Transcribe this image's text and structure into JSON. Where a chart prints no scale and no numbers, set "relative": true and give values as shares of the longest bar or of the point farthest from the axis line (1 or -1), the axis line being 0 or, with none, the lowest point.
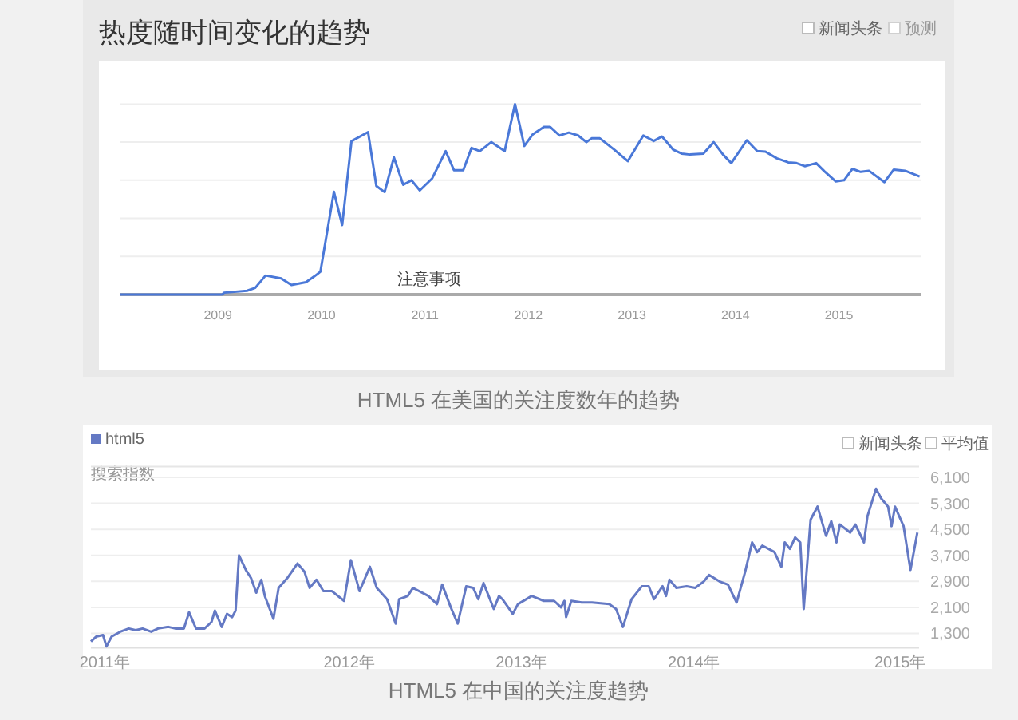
{
  "chart_data": [
    {
      "type": "line",
      "title": "热度随时间变化的趋势",
      "relative": true,
      "grid": "y",
      "legend": false,
      "color": "#4a78d8",
      "x": [
        2008.05,
        2009.04,
        2009.06,
        2009.28,
        2009.36,
        2009.46,
        2009.61,
        2009.71,
        2009.85,
        2009.93,
        2009.99,
        2010.12,
        2010.2,
        2010.29,
        2010.45,
        2010.53,
        2010.61,
        2010.7,
        2010.79,
        2010.87,
        2010.95,
        2011.07,
        2011.2,
        2011.28,
        2011.37,
        2011.45,
        2011.53,
        2011.64,
        2011.77,
        2011.87,
        2011.96,
        2012.04,
        2012.15,
        2012.21,
        2012.3,
        2012.39,
        2012.48,
        2012.56,
        2012.61,
        2012.69,
        2012.83,
        2012.96,
        2013.11,
        2013.21,
        2013.29,
        2013.4,
        2013.48,
        2013.56,
        2013.69,
        2013.79,
        2013.88,
        2013.96,
        2014.11,
        2014.21,
        2014.29,
        2014.4,
        2014.51,
        2014.59,
        2014.67,
        2014.78,
        2014.86,
        2014.97,
        2015.05,
        2015.13,
        2015.21,
        2015.29,
        2015.44,
        2015.53,
        2015.64,
        2015.78
      ],
      "values": [
        0,
        0,
        0.01,
        0.02,
        0.035,
        0.1,
        0.085,
        0.05,
        0.065,
        0.095,
        0.12,
        0.54,
        0.365,
        0.805,
        0.853,
        0.57,
        0.538,
        0.72,
        0.576,
        0.6,
        0.547,
        0.61,
        0.753,
        0.653,
        0.653,
        0.77,
        0.753,
        0.8,
        0.753,
        1.0,
        0.78,
        0.84,
        0.88,
        0.88,
        0.835,
        0.85,
        0.835,
        0.8,
        0.82,
        0.82,
        0.76,
        0.7,
        0.835,
        0.806,
        0.83,
        0.76,
        0.74,
        0.735,
        0.74,
        0.8,
        0.735,
        0.69,
        0.81,
        0.753,
        0.75,
        0.715,
        0.694,
        0.69,
        0.674,
        0.69,
        0.647,
        0.594,
        0.6,
        0.66,
        0.644,
        0.65,
        0.59,
        0.656,
        0.65,
        0.62
      ],
      "xlim": [
        2008.05,
        2015.79
      ],
      "xticks": [
        2009,
        2010,
        2011,
        2012,
        2013,
        2014,
        2015
      ],
      "annotations": [
        "HTML5 在美国的关注度数年的趋势",
        "注意事项",
        "新闻头条",
        "预测"
      ]
    },
    {
      "type": "line",
      "ylabel": "搜索指数",
      "grid": "y",
      "legend": "top left",
      "series": [
        {
          "name": "html5",
          "color": "#6479c4",
          "x": [
            2010.5,
            2010.53,
            2010.57,
            2010.59,
            2010.62,
            2010.67,
            2010.72,
            2010.76,
            2010.8,
            2010.85,
            2010.89,
            2010.95,
            2010.99,
            2011.04,
            2011.07,
            2011.11,
            2011.16,
            2011.2,
            2011.22,
            2011.26,
            2011.29,
            2011.32,
            2011.34,
            2011.36,
            2011.4,
            2011.43,
            2011.46,
            2011.49,
            2011.51,
            2011.56,
            2011.59,
            2011.64,
            2011.7,
            2011.74,
            2011.77,
            2011.81,
            2011.85,
            2011.9,
            2011.97,
            2012.01,
            2012.06,
            2012.12,
            2012.16,
            2012.22,
            2012.27,
            2012.29,
            2012.34,
            2012.37,
            2012.46,
            2012.51,
            2012.54,
            2012.59,
            2012.63,
            2012.68,
            2012.72,
            2012.75,
            2012.78,
            2012.84,
            2012.87,
            2012.89,
            2012.95,
            2012.98,
            2013.06,
            2013.13,
            2013.19,
            2013.23,
            2013.25,
            2013.26,
            2013.29,
            2013.35,
            2013.41,
            2013.51,
            2013.55,
            2013.59,
            2013.64,
            2013.7,
            2013.74,
            2013.77,
            2013.82,
            2013.84,
            2013.86,
            2013.9,
            2013.96,
            2014.01,
            2014.06,
            2014.09,
            2014.15,
            2014.2,
            2014.25,
            2014.3,
            2014.34,
            2014.37,
            2014.4,
            2014.47,
            2014.51,
            2014.53,
            2014.56,
            2014.59,
            2014.62,
            2014.64,
            2014.68,
            2014.72,
            2014.77,
            2014.8,
            2014.83,
            2014.85,
            2014.91,
            2014.94,
            2014.99,
            2015.01,
            2015.06,
            2015.09,
            2015.13,
            2015.15,
            2015.17,
            2015.22,
            2015.26,
            2015.3
          ],
          "values": [
            1050,
            1200,
            1250,
            900,
            1200,
            1350,
            1450,
            1400,
            1450,
            1350,
            1450,
            1500,
            1450,
            1450,
            1950,
            1450,
            1450,
            1650,
            2000,
            1500,
            1900,
            1800,
            2000,
            3700,
            3250,
            3000,
            2550,
            2950,
            2450,
            1750,
            2700,
            3000,
            3450,
            3200,
            2700,
            2950,
            2600,
            2600,
            2300,
            3550,
            2600,
            3350,
            2700,
            2350,
            1600,
            2350,
            2450,
            2700,
            2450,
            2200,
            2800,
            2100,
            1600,
            2750,
            2700,
            2350,
            2850,
            2050,
            2450,
            2350,
            1900,
            2200,
            2450,
            2300,
            2300,
            2100,
            2300,
            1800,
            2300,
            2250,
            2250,
            2200,
            2050,
            1500,
            2350,
            2750,
            2750,
            2350,
            2750,
            2450,
            2950,
            2700,
            2750,
            2700,
            2900,
            3100,
            2900,
            2800,
            2250,
            3200,
            4100,
            3800,
            4000,
            3800,
            3350,
            4100,
            3900,
            4250,
            4100,
            2050,
            4800,
            5200,
            4300,
            4750,
            4100,
            4650,
            4400,
            4650,
            4100,
            4900,
            5750,
            5450,
            5200,
            4600,
            5200,
            4600,
            3250,
            4400
          ]
        }
      ],
      "xlim": [
        2010.5,
        2015.31
      ],
      "xticks": [
        {
          "value": 2010.58,
          "label": "2011年"
        },
        {
          "value": 2012,
          "label": "2012年"
        },
        {
          "value": 2013,
          "label": "2013年"
        },
        {
          "value": 2014,
          "label": "2014年"
        },
        {
          "value": 2015.2,
          "label": "2015年"
        }
      ],
      "ylim": [
        860,
        6430
      ],
      "yticks": [
        {
          "value": 1300,
          "label": "1,300"
        },
        {
          "value": 2100,
          "label": "2,100"
        },
        {
          "value": 2900,
          "label": "2,900"
        },
        {
          "value": 3700,
          "label": "3,700"
        },
        {
          "value": 4500,
          "label": "4,500"
        },
        {
          "value": 5300,
          "label": "5,300"
        },
        {
          "value": 6100,
          "label": "6,100"
        }
      ],
      "annotations": [
        "HTML5 在中国的关注度趋势",
        "新闻头条",
        "平均值"
      ]
    }
  ]
}
